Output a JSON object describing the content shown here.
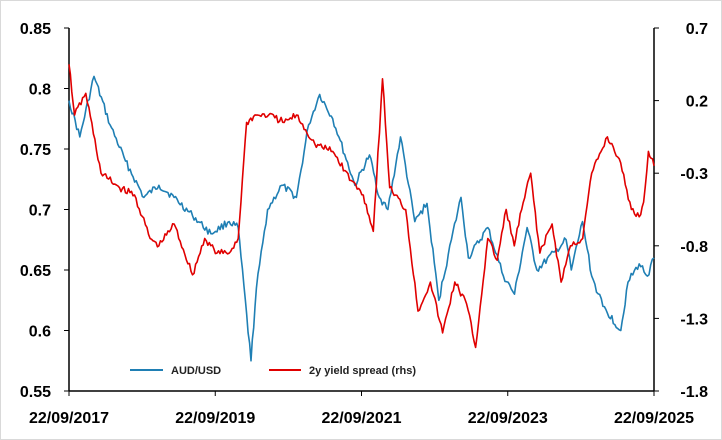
{
  "chart_data": {
    "type": "line",
    "title": "",
    "xlabel": "",
    "ylabel": "",
    "x_tick_labels": [
      "22/09/2017",
      "22/09/2019",
      "22/09/2021",
      "22/09/2023",
      "22/09/2025"
    ],
    "left_axis": {
      "ylim": [
        0.55,
        0.85
      ],
      "ticks": [
        "0.55",
        "0.6",
        "0.65",
        "0.7",
        "0.75",
        "0.8",
        "0.85"
      ]
    },
    "right_axis": {
      "ylim": [
        -1.8,
        0.7
      ],
      "ticks": [
        "-1.8",
        "-1.3",
        "-0.8",
        "-0.3",
        "0.2",
        "0.7"
      ]
    },
    "x_range": [
      "2017-09-22",
      "2025-09-22"
    ],
    "grid": false,
    "legend_position": "bottom-center-inside",
    "series": [
      {
        "name": "AUD/USD",
        "axis": "left",
        "color": "#1f7fb4",
        "points": [
          [
            "2017-09-22",
            0.79
          ],
          [
            "2017-11-15",
            0.76
          ],
          [
            "2018-01-25",
            0.81
          ],
          [
            "2018-04-15",
            0.77
          ],
          [
            "2018-07-01",
            0.74
          ],
          [
            "2018-10-01",
            0.71
          ],
          [
            "2018-12-15",
            0.72
          ],
          [
            "2019-03-01",
            0.71
          ],
          [
            "2019-06-01",
            0.695
          ],
          [
            "2019-09-01",
            0.68
          ],
          [
            "2019-12-01",
            0.69
          ],
          [
            "2020-01-15",
            0.685
          ],
          [
            "2020-03-19",
            0.575
          ],
          [
            "2020-04-15",
            0.635
          ],
          [
            "2020-06-10",
            0.7
          ],
          [
            "2020-08-20",
            0.72
          ],
          [
            "2020-11-01",
            0.71
          ],
          [
            "2021-01-01",
            0.77
          ],
          [
            "2021-02-25",
            0.795
          ],
          [
            "2021-05-01",
            0.775
          ],
          [
            "2021-06-01",
            0.76
          ],
          [
            "2021-08-20",
            0.72
          ],
          [
            "2021-11-01",
            0.745
          ],
          [
            "2021-12-20",
            0.71
          ],
          [
            "2022-02-01",
            0.7
          ],
          [
            "2022-04-05",
            0.76
          ],
          [
            "2022-06-15",
            0.69
          ],
          [
            "2022-08-15",
            0.705
          ],
          [
            "2022-10-13",
            0.625
          ],
          [
            "2022-12-15",
            0.675
          ],
          [
            "2023-02-01",
            0.71
          ],
          [
            "2023-03-10",
            0.66
          ],
          [
            "2023-06-15",
            0.685
          ],
          [
            "2023-09-01",
            0.645
          ],
          [
            "2023-10-26",
            0.63
          ],
          [
            "2023-12-28",
            0.685
          ],
          [
            "2024-02-15",
            0.65
          ],
          [
            "2024-05-15",
            0.665
          ],
          [
            "2024-07-10",
            0.675
          ],
          [
            "2024-08-05",
            0.65
          ],
          [
            "2024-09-30",
            0.69
          ],
          [
            "2024-11-15",
            0.645
          ],
          [
            "2025-01-10",
            0.62
          ],
          [
            "2025-04-09",
            0.6
          ],
          [
            "2025-05-15",
            0.64
          ],
          [
            "2025-07-10",
            0.655
          ],
          [
            "2025-08-20",
            0.645
          ],
          [
            "2025-09-22",
            0.66
          ]
        ]
      },
      {
        "name": "2y yield spread (rhs)",
        "axis": "right",
        "color": "#e00000",
        "points": [
          [
            "2017-09-22",
            0.45
          ],
          [
            "2017-10-20",
            0.1
          ],
          [
            "2017-12-15",
            0.25
          ],
          [
            "2018-03-01",
            -0.3
          ],
          [
            "2018-06-01",
            -0.4
          ],
          [
            "2018-08-15",
            -0.45
          ],
          [
            "2018-11-01",
            -0.75
          ],
          [
            "2018-12-15",
            -0.8
          ],
          [
            "2019-03-01",
            -0.65
          ],
          [
            "2019-06-01",
            -1.0
          ],
          [
            "2019-08-01",
            -0.75
          ],
          [
            "2019-10-01",
            -0.85
          ],
          [
            "2019-12-01",
            -0.85
          ],
          [
            "2020-01-15",
            -0.75
          ],
          [
            "2020-02-26",
            0.05
          ],
          [
            "2020-04-15",
            0.1
          ],
          [
            "2020-06-15",
            0.1
          ],
          [
            "2020-09-01",
            0.05
          ],
          [
            "2020-11-01",
            0.1
          ],
          [
            "2021-02-01",
            -0.1
          ],
          [
            "2021-05-01",
            -0.15
          ],
          [
            "2021-08-01",
            -0.35
          ],
          [
            "2021-10-01",
            -0.45
          ],
          [
            "2021-11-20",
            -0.7
          ],
          [
            "2022-01-05",
            0.35
          ],
          [
            "2022-02-10",
            -0.4
          ],
          [
            "2022-05-01",
            -0.55
          ],
          [
            "2022-07-01",
            -1.25
          ],
          [
            "2022-09-01",
            -1.05
          ],
          [
            "2022-11-01",
            -1.4
          ],
          [
            "2023-01-01",
            -1.05
          ],
          [
            "2023-03-01",
            -1.2
          ],
          [
            "2023-04-15",
            -1.5
          ],
          [
            "2023-06-15",
            -0.75
          ],
          [
            "2023-08-01",
            -0.9
          ],
          [
            "2023-09-15",
            -0.55
          ],
          [
            "2023-10-25",
            -0.8
          ],
          [
            "2023-12-01",
            -0.55
          ],
          [
            "2024-01-15",
            -0.3
          ],
          [
            "2024-03-01",
            -0.85
          ],
          [
            "2024-05-01",
            -0.65
          ],
          [
            "2024-06-15",
            -1.05
          ],
          [
            "2024-08-01",
            -0.8
          ],
          [
            "2024-10-01",
            -0.75
          ],
          [
            "2024-11-15",
            -0.3
          ],
          [
            "2025-01-01",
            -0.15
          ],
          [
            "2025-02-01",
            -0.05
          ],
          [
            "2025-04-01",
            -0.2
          ],
          [
            "2025-06-01",
            -0.55
          ],
          [
            "2025-07-10",
            -0.6
          ],
          [
            "2025-08-01",
            -0.5
          ],
          [
            "2025-08-25",
            -0.15
          ],
          [
            "2025-09-22",
            -0.25
          ]
        ]
      }
    ]
  }
}
